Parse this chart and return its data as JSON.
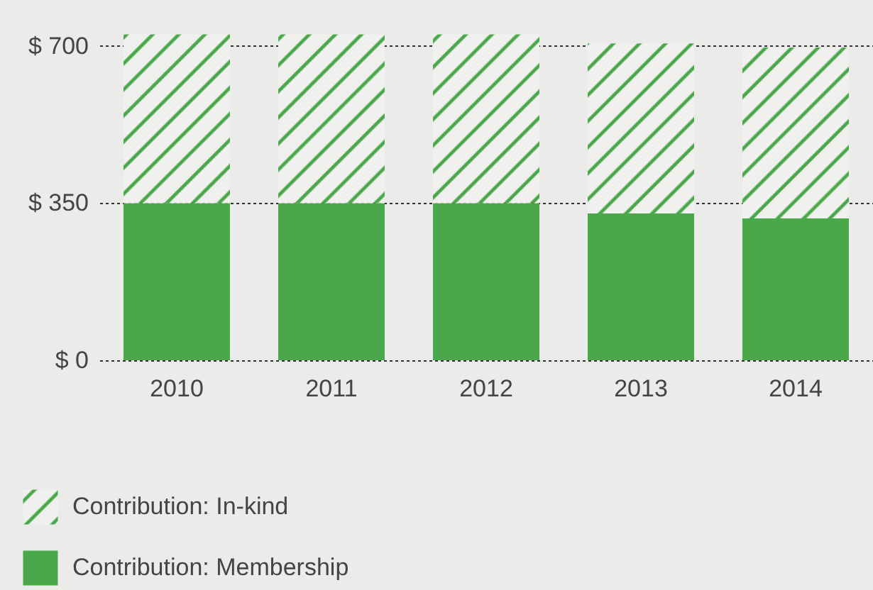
{
  "chart_data": {
    "type": "bar",
    "stacked": true,
    "categories": [
      "2010",
      "2011",
      "2012",
      "2013",
      "2014"
    ],
    "series": [
      {
        "name": "Contribution: Membership",
        "color": "#4aa84a",
        "values": [
          350,
          350,
          350,
          327,
          316
        ]
      },
      {
        "name": "Contribution: In-kind",
        "color": "#4aa84a",
        "values": [
          376,
          376,
          376,
          379,
          381
        ]
      }
    ],
    "ylim": [
      0,
      730
    ],
    "yticks": [
      {
        "value": 0,
        "label": "$ 0"
      },
      {
        "value": 350,
        "label": "$ 350"
      },
      {
        "value": 700,
        "label": "$ 700"
      }
    ],
    "grid": "y",
    "legend": "bottom left"
  }
}
